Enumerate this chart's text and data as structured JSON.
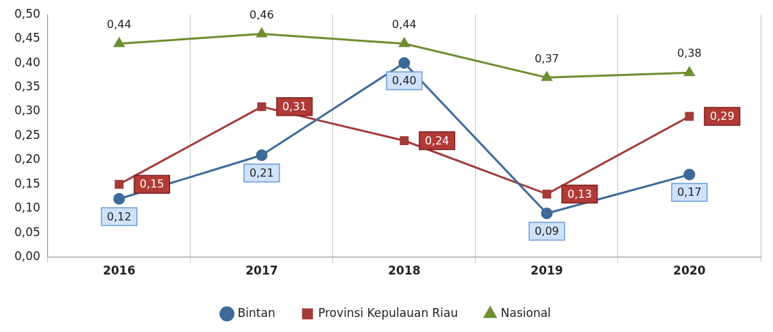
{
  "chart_data": {
    "type": "line",
    "categories": [
      "2016",
      "2017",
      "2018",
      "2019",
      "2020"
    ],
    "series": [
      {
        "name": "Bintan",
        "color": "#3d6a99",
        "marker": "circle",
        "values": [
          0.12,
          0.21,
          0.4,
          0.09,
          0.17
        ],
        "value_labels": [
          "0,12",
          "0,21",
          "0,40",
          "0,09",
          "0,17"
        ]
      },
      {
        "name": "Provinsi Kepulauan Riau",
        "color": "#a33b38",
        "marker": "square",
        "values": [
          0.15,
          0.31,
          0.24,
          0.13,
          0.29
        ],
        "value_labels": [
          "0,15",
          "0,31",
          "0,24",
          "0,13",
          "0,29"
        ]
      },
      {
        "name": "Nasional",
        "color": "#6f8d32",
        "marker": "triangle",
        "values": [
          0.44,
          0.46,
          0.44,
          0.37,
          0.38
        ],
        "value_labels": [
          "0,44",
          "0,46",
          "0,44",
          "0,37",
          "0,38"
        ]
      }
    ],
    "ylim": [
      0,
      0.5
    ],
    "yticks": [
      {
        "value": 0,
        "label": "0,00"
      },
      {
        "value": 0.05,
        "label": "0,05"
      },
      {
        "value": 0.1,
        "label": "0,10"
      },
      {
        "value": 0.15,
        "label": "0,15"
      },
      {
        "value": 0.2,
        "label": "0,20"
      },
      {
        "value": 0.25,
        "label": "0,25"
      },
      {
        "value": 0.3,
        "label": "0,30"
      },
      {
        "value": 0.35,
        "label": "0,35"
      },
      {
        "value": 0.4,
        "label": "0,40"
      },
      {
        "value": 0.45,
        "label": "0,45"
      },
      {
        "value": 0.5,
        "label": "0,50"
      }
    ],
    "grid": "x",
    "legend": "bottom"
  }
}
